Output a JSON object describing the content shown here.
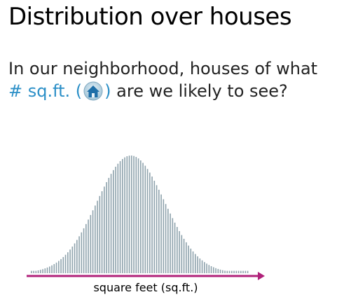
{
  "slide": {
    "title": "Distribution over houses",
    "question": {
      "line1": "In our neighborhood, houses of what",
      "accent_prefix": "# sq.ft. (",
      "accent_suffix": ")",
      "line2_rest": " are we likely to see?"
    },
    "accent_color": "#2b8fc7",
    "house_icon": "house-icon"
  },
  "chart_data": {
    "type": "bar",
    "description_source": "histogram of house sizes, bell-shaped",
    "xlabel": "square feet (sq.ft.)",
    "ylabel": "",
    "bar_color": "#8fa3ad",
    "axis_color": "#b0217a",
    "bin_count": 96,
    "shape": "normal",
    "center_fraction": 0.46,
    "spread_fraction": 0.155,
    "peak_value": 1.0,
    "baseline_value": 0.02
  }
}
